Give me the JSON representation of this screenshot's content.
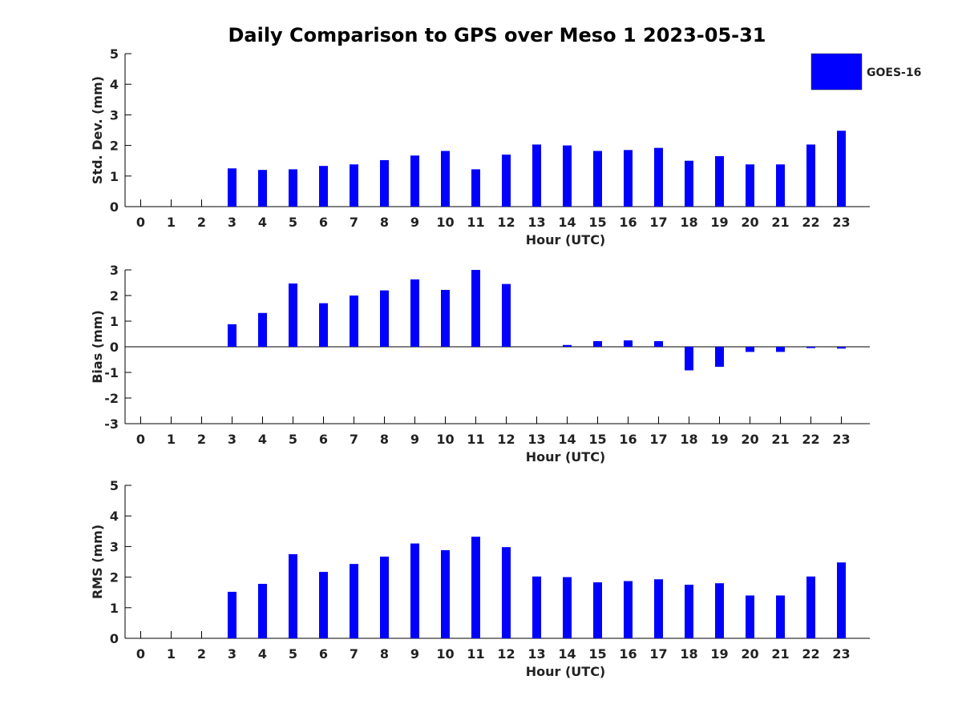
{
  "title": "Daily Comparison to GPS over Meso 1 2023-05-31",
  "legend": {
    "label": "GOES-16",
    "color": "#0000ff",
    "placement": "top-right"
  },
  "chart_data": [
    {
      "type": "bar",
      "xlabel": "Hour (UTC)",
      "ylabel": "Std. Dev. (mm)",
      "ylim": [
        0,
        5
      ],
      "yticks": [
        0,
        1,
        2,
        3,
        4,
        5
      ],
      "categories": [
        "0",
        "1",
        "2",
        "3",
        "4",
        "5",
        "6",
        "7",
        "8",
        "9",
        "10",
        "11",
        "12",
        "13",
        "14",
        "15",
        "16",
        "17",
        "18",
        "19",
        "20",
        "21",
        "22",
        "23"
      ],
      "series": [
        {
          "name": "GOES-16",
          "values": [
            null,
            null,
            null,
            1.25,
            1.2,
            1.22,
            1.33,
            1.38,
            1.52,
            1.67,
            1.82,
            1.22,
            1.7,
            2.03,
            2.0,
            1.82,
            1.85,
            1.92,
            1.5,
            1.65,
            1.38,
            1.38,
            2.03,
            2.48
          ]
        }
      ]
    },
    {
      "type": "bar",
      "xlabel": "Hour (UTC)",
      "ylabel": "Bias (mm)",
      "ylim": [
        -3,
        3
      ],
      "yticks": [
        -3,
        -2,
        -1,
        0,
        1,
        2,
        3
      ],
      "categories": [
        "0",
        "1",
        "2",
        "3",
        "4",
        "5",
        "6",
        "7",
        "8",
        "9",
        "10",
        "11",
        "12",
        "13",
        "14",
        "15",
        "16",
        "17",
        "18",
        "19",
        "20",
        "21",
        "22",
        "23"
      ],
      "series": [
        {
          "name": "GOES-16",
          "values": [
            null,
            null,
            null,
            0.88,
            1.32,
            2.47,
            1.7,
            2.0,
            2.2,
            2.63,
            2.22,
            3.0,
            2.45,
            0.0,
            0.07,
            0.22,
            0.25,
            0.22,
            -0.92,
            -0.78,
            -0.2,
            -0.2,
            -0.05,
            -0.07
          ]
        }
      ]
    },
    {
      "type": "bar",
      "xlabel": "Hour (UTC)",
      "ylabel": "RMS (mm)",
      "ylim": [
        0,
        5
      ],
      "yticks": [
        0,
        1,
        2,
        3,
        4,
        5
      ],
      "categories": [
        "0",
        "1",
        "2",
        "3",
        "4",
        "5",
        "6",
        "7",
        "8",
        "9",
        "10",
        "11",
        "12",
        "13",
        "14",
        "15",
        "16",
        "17",
        "18",
        "19",
        "20",
        "21",
        "22",
        "23"
      ],
      "series": [
        {
          "name": "GOES-16",
          "values": [
            null,
            null,
            null,
            1.52,
            1.78,
            2.75,
            2.17,
            2.43,
            2.67,
            3.1,
            2.88,
            3.32,
            2.98,
            2.02,
            2.0,
            1.83,
            1.87,
            1.93,
            1.75,
            1.8,
            1.4,
            1.4,
            2.02,
            2.48
          ]
        }
      ]
    }
  ]
}
